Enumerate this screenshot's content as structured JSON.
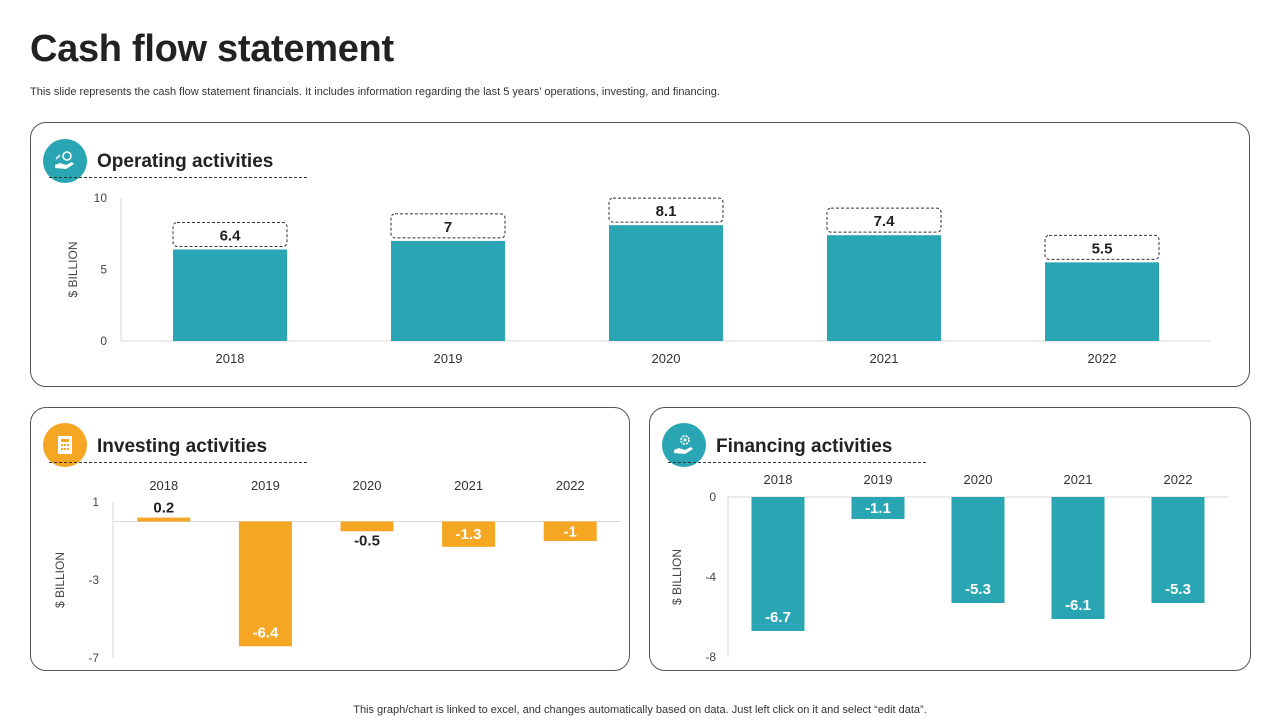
{
  "page": {
    "title": "Cash flow statement",
    "subtitle": "This slide represents the cash flow statement financials. It includes information regarding the last 5 years’ operations, investing, and financing.",
    "footer": "This graph/chart is linked to excel,  and changes automatically based on data. Just left click on it and select “edit data”."
  },
  "colors": {
    "teal": "#2aa5b3",
    "orange": "#f5a623",
    "text": "#222222"
  },
  "panels": {
    "operating": {
      "title": "Operating activities",
      "icon": "hand-coins-icon"
    },
    "investing": {
      "title": "Investing activities",
      "icon": "calculator-document-icon"
    },
    "financing": {
      "title": "Financing activities",
      "icon": "hand-gear-icon"
    }
  },
  "chart_data": [
    {
      "id": "operating",
      "type": "bar",
      "title": "Operating activities",
      "categories": [
        "2018",
        "2019",
        "2020",
        "2021",
        "2022"
      ],
      "values": [
        6.4,
        7,
        8.1,
        7.4,
        5.5
      ],
      "ylabel": "$ BILLION",
      "ylim": [
        0,
        10
      ],
      "yticks": [
        0,
        5,
        10
      ],
      "color": "#2aa5b3",
      "label_style": "dashed-box",
      "category_axis": "bottom"
    },
    {
      "id": "investing",
      "type": "bar",
      "title": "Investing activities",
      "categories": [
        "2018",
        "2019",
        "2020",
        "2021",
        "2022"
      ],
      "values": [
        0.2,
        -6.4,
        -0.5,
        -1.3,
        -1
      ],
      "ylabel": "$ BILLION",
      "ylim": [
        -7,
        1
      ],
      "yticks": [
        1,
        -3,
        -7
      ],
      "color": "#f5a623",
      "category_axis": "top"
    },
    {
      "id": "financing",
      "type": "bar",
      "title": "Financing activities",
      "categories": [
        "2018",
        "2019",
        "2020",
        "2021",
        "2022"
      ],
      "values": [
        -6.7,
        -1.1,
        -5.3,
        -6.1,
        -5.3
      ],
      "ylabel": "$ BILLION",
      "ylim": [
        -8,
        0
      ],
      "yticks": [
        0,
        -4,
        -8
      ],
      "color": "#2aa5b3",
      "category_axis": "top"
    }
  ]
}
